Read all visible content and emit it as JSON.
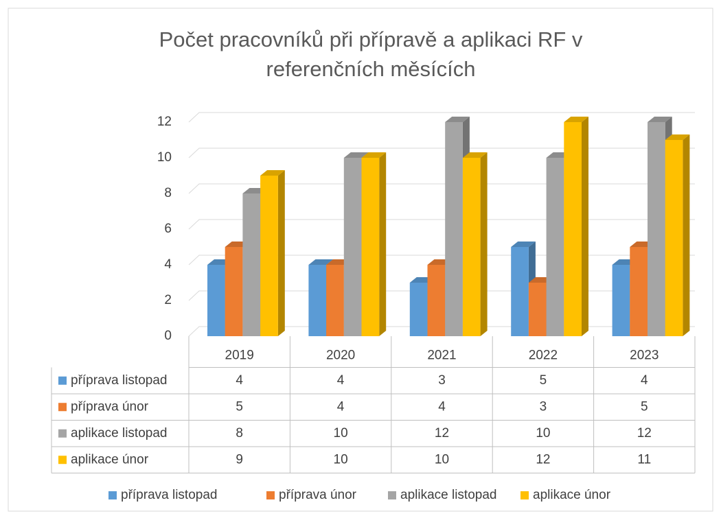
{
  "chart_data": {
    "type": "bar3d",
    "title": [
      "Počet pracovníků při přípravě a aplikaci RF v",
      "referenčních měsících"
    ],
    "categories": [
      "2019",
      "2020",
      "2021",
      "2022",
      "2023"
    ],
    "series": [
      {
        "name": "příprava listopad",
        "color": "#5b9bd5",
        "values": [
          4,
          4,
          3,
          5,
          4
        ]
      },
      {
        "name": "příprava únor",
        "color": "#ed7d31",
        "values": [
          5,
          4,
          4,
          3,
          5
        ]
      },
      {
        "name": "aplikace listopad",
        "color": "#a5a5a5",
        "values": [
          8,
          10,
          12,
          10,
          12
        ]
      },
      {
        "name": "aplikace únor",
        "color": "#ffc000",
        "values": [
          9,
          10,
          10,
          12,
          11
        ]
      }
    ],
    "ylim": [
      0,
      12
    ],
    "yticks": [
      0,
      2,
      4,
      6,
      8,
      10,
      12
    ],
    "grid": true,
    "legend": "bottom"
  }
}
